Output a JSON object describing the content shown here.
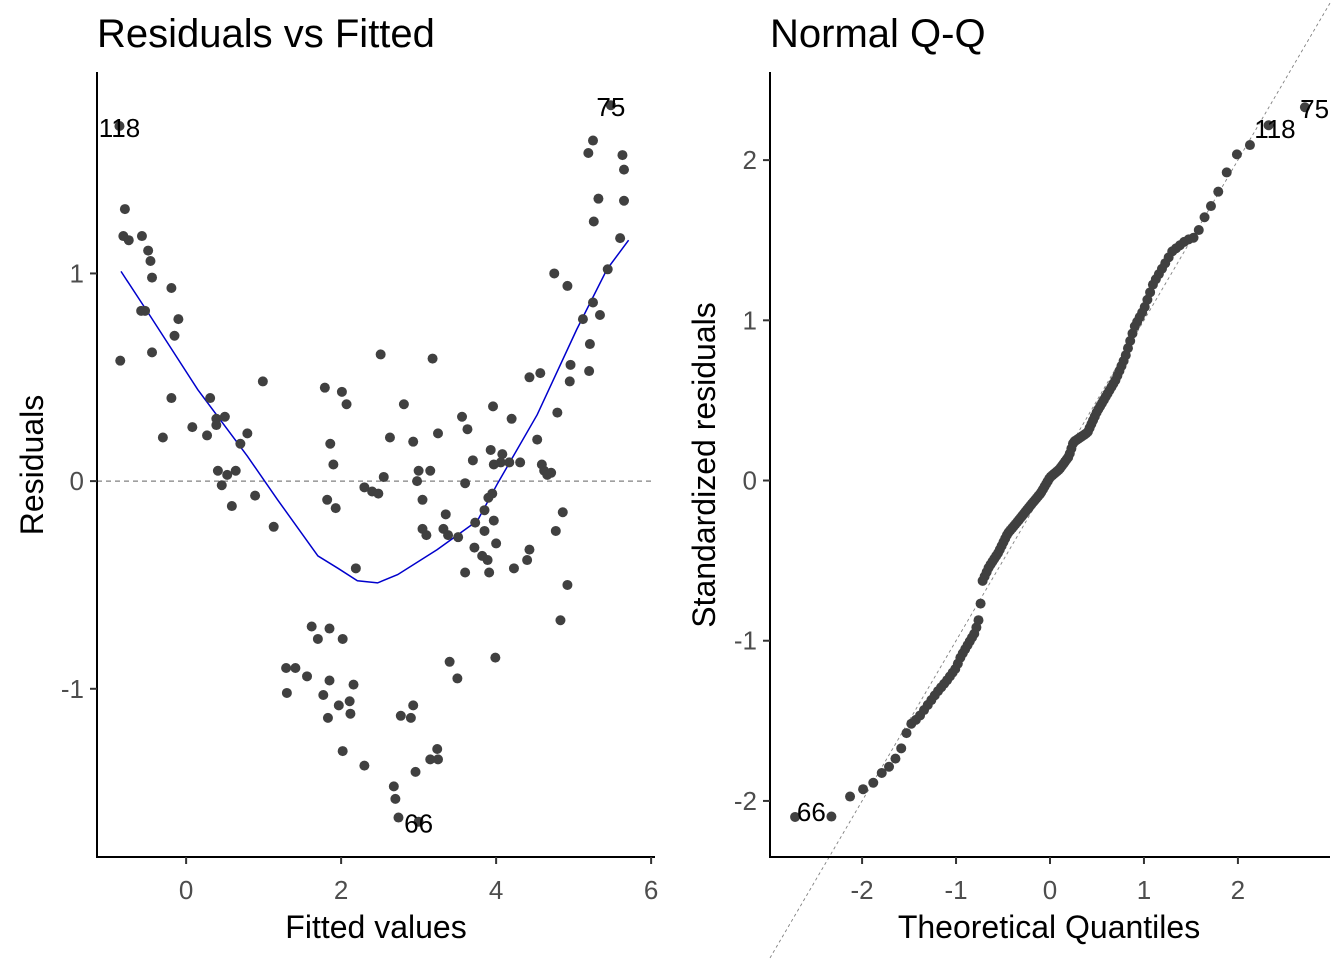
{
  "chart_data": [
    {
      "type": "scatter",
      "title": "Residuals vs Fitted",
      "xlabel": "Fitted values",
      "ylabel": "Residuals",
      "xlim": [
        -1.15,
        6.05
      ],
      "ylim": [
        -1.81,
        1.97
      ],
      "xticks": [
        0,
        2,
        4,
        6
      ],
      "xtick_labels": [
        "0",
        "2",
        "4",
        "6"
      ],
      "yticks": [
        -1,
        0,
        1
      ],
      "ytick_labels": [
        "-1",
        "0",
        "1"
      ],
      "grid": false,
      "hline": 0,
      "point_color": "#404040",
      "smooth_color": "#0000cc",
      "reference_color": "#808080",
      "labeled_points": [
        {
          "label": "118",
          "x": -0.86,
          "y": 1.71
        },
        {
          "label": "75",
          "x": 5.48,
          "y": 1.81
        },
        {
          "label": "66",
          "x": 3.0,
          "y": -1.64
        }
      ],
      "points": [
        [
          -0.86,
          1.71
        ],
        [
          -0.79,
          1.31
        ],
        [
          -0.81,
          1.18
        ],
        [
          -0.74,
          1.16
        ],
        [
          -0.57,
          1.18
        ],
        [
          -0.49,
          1.11
        ],
        [
          -0.46,
          1.06
        ],
        [
          -0.44,
          0.98
        ],
        [
          -0.58,
          0.82
        ],
        [
          -0.53,
          0.82
        ],
        [
          -0.19,
          0.93
        ],
        [
          -0.1,
          0.78
        ],
        [
          -0.15,
          0.7
        ],
        [
          -0.85,
          0.58
        ],
        [
          -0.44,
          0.62
        ],
        [
          -0.19,
          0.4
        ],
        [
          -0.3,
          0.21
        ],
        [
          0.31,
          0.4
        ],
        [
          0.08,
          0.26
        ],
        [
          0.27,
          0.22
        ],
        [
          0.39,
          0.3
        ],
        [
          0.5,
          0.31
        ],
        [
          0.39,
          0.27
        ],
        [
          0.79,
          0.23
        ],
        [
          0.99,
          0.48
        ],
        [
          0.41,
          0.05
        ],
        [
          0.46,
          -0.02
        ],
        [
          0.53,
          0.03
        ],
        [
          0.64,
          0.05
        ],
        [
          0.59,
          -0.12
        ],
        [
          0.89,
          -0.07
        ],
        [
          1.13,
          -0.22
        ],
        [
          1.29,
          -0.9
        ],
        [
          1.3,
          -1.02
        ],
        [
          1.41,
          -0.9
        ],
        [
          1.56,
          -0.94
        ],
        [
          1.62,
          -0.7
        ],
        [
          1.7,
          -0.76
        ],
        [
          1.85,
          -0.71
        ],
        [
          1.85,
          -0.96
        ],
        [
          1.77,
          -1.03
        ],
        [
          1.83,
          -1.14
        ],
        [
          2.02,
          -0.76
        ],
        [
          1.97,
          -1.08
        ],
        [
          2.11,
          -1.06
        ],
        [
          2.16,
          -0.98
        ],
        [
          2.12,
          -1.12
        ],
        [
          2.02,
          -1.3
        ],
        [
          2.3,
          -1.37
        ],
        [
          1.79,
          0.45
        ],
        [
          2.01,
          0.43
        ],
        [
          2.07,
          0.37
        ],
        [
          1.86,
          0.18
        ],
        [
          1.82,
          -0.09
        ],
        [
          1.93,
          -0.13
        ],
        [
          2.19,
          -0.42
        ],
        [
          2.3,
          -0.03
        ],
        [
          2.51,
          0.61
        ],
        [
          2.48,
          -0.06
        ],
        [
          2.55,
          0.02
        ],
        [
          2.81,
          0.37
        ],
        [
          2.63,
          0.21
        ],
        [
          2.93,
          0.19
        ],
        [
          2.98,
          0.0
        ],
        [
          3.05,
          -0.09
        ],
        [
          3.18,
          0.59
        ],
        [
          3.0,
          0.05
        ],
        [
          3.15,
          0.05
        ],
        [
          3.25,
          0.23
        ],
        [
          3.05,
          -0.23
        ],
        [
          2.77,
          -1.13
        ],
        [
          2.9,
          -1.14
        ],
        [
          2.93,
          -1.08
        ],
        [
          2.68,
          -1.47
        ],
        [
          2.7,
          -1.53
        ],
        [
          2.74,
          -1.62
        ],
        [
          3.0,
          -1.64
        ],
        [
          2.96,
          -1.4
        ],
        [
          3.15,
          -1.34
        ],
        [
          3.24,
          -1.29
        ],
        [
          3.25,
          -1.34
        ],
        [
          3.4,
          -0.87
        ],
        [
          3.5,
          -0.95
        ],
        [
          3.35,
          -0.16
        ],
        [
          3.32,
          -0.23
        ],
        [
          3.38,
          -0.26
        ],
        [
          3.56,
          0.31
        ],
        [
          3.63,
          0.25
        ],
        [
          3.6,
          -0.01
        ],
        [
          3.51,
          -0.27
        ],
        [
          3.72,
          -0.32
        ],
        [
          3.73,
          -0.2
        ],
        [
          3.82,
          -0.36
        ],
        [
          3.85,
          -0.14
        ],
        [
          3.9,
          -0.08
        ],
        [
          3.91,
          -0.44
        ],
        [
          3.96,
          0.36
        ],
        [
          3.93,
          0.15
        ],
        [
          3.97,
          0.08
        ],
        [
          3.95,
          -0.06
        ],
        [
          3.97,
          -0.19
        ],
        [
          4.06,
          0.09
        ],
        [
          4.08,
          0.13
        ],
        [
          4.17,
          0.09
        ],
        [
          4.23,
          -0.42
        ],
        [
          3.85,
          -0.24
        ],
        [
          3.99,
          -0.85
        ],
        [
          3.89,
          -0.38
        ],
        [
          4.31,
          0.09
        ],
        [
          4.43,
          0.5
        ],
        [
          4.57,
          0.52
        ],
        [
          4.43,
          -0.33
        ],
        [
          4.53,
          0.2
        ],
        [
          4.59,
          0.08
        ],
        [
          4.62,
          0.05
        ],
        [
          4.66,
          0.03
        ],
        [
          4.71,
          0.04
        ],
        [
          4.79,
          0.33
        ],
        [
          4.86,
          -0.15
        ],
        [
          4.77,
          -0.24
        ],
        [
          4.92,
          -0.5
        ],
        [
          4.83,
          -0.67
        ],
        [
          4.95,
          0.48
        ],
        [
          4.96,
          0.56
        ],
        [
          4.75,
          1.0
        ],
        [
          4.92,
          0.94
        ],
        [
          5.12,
          0.78
        ],
        [
          5.21,
          0.66
        ],
        [
          5.34,
          0.8
        ],
        [
          5.25,
          0.86
        ],
        [
          5.2,
          0.53
        ],
        [
          5.26,
          1.25
        ],
        [
          5.32,
          1.36
        ],
        [
          5.44,
          1.02
        ],
        [
          5.6,
          1.17
        ],
        [
          5.19,
          1.58
        ],
        [
          5.25,
          1.64
        ],
        [
          5.63,
          1.57
        ],
        [
          5.65,
          1.5
        ],
        [
          5.65,
          1.35
        ],
        [
          5.48,
          1.81
        ],
        [
          3.6,
          -0.44
        ],
        [
          4.4,
          -0.38
        ],
        [
          4.0,
          -0.3
        ],
        [
          3.1,
          -0.26
        ],
        [
          2.4,
          -0.05
        ],
        [
          1.9,
          0.08
        ],
        [
          3.7,
          0.1
        ],
        [
          4.2,
          0.3
        ],
        [
          0.7,
          0.18
        ]
      ],
      "smooth_line": [
        [
          -0.84,
          1.01
        ],
        [
          -0.49,
          0.81
        ],
        [
          0.15,
          0.44
        ],
        [
          0.79,
          0.12
        ],
        [
          1.18,
          -0.09
        ],
        [
          1.7,
          -0.36
        ],
        [
          1.96,
          -0.42
        ],
        [
          2.21,
          -0.48
        ],
        [
          2.47,
          -0.49
        ],
        [
          2.73,
          -0.45
        ],
        [
          3.24,
          -0.33
        ],
        [
          3.76,
          -0.19
        ],
        [
          4.02,
          -0.01
        ],
        [
          4.53,
          0.32
        ],
        [
          5.04,
          0.73
        ],
        [
          5.43,
          1.02
        ],
        [
          5.71,
          1.16
        ]
      ]
    },
    {
      "type": "scatter",
      "title": "Normal Q-Q",
      "xlabel": "Theoretical Quantiles",
      "ylabel": "Standardized residuals",
      "xlim": [
        -2.98,
        2.98
      ],
      "ylim": [
        -2.35,
        2.55
      ],
      "xticks": [
        -2,
        -1,
        0,
        1,
        2
      ],
      "xtick_labels": [
        "-2",
        "-1",
        "0",
        "1",
        "2"
      ],
      "yticks": [
        -2,
        -1,
        0,
        1,
        2
      ],
      "ytick_labels": [
        "-2",
        "-1",
        "0",
        "1",
        "2"
      ],
      "grid": false,
      "reference_line": {
        "slope": 1,
        "intercept": 0
      },
      "point_color": "#404040",
      "reference_color": "#808080",
      "n_points": 150,
      "labeled_points": [
        {
          "label": "66",
          "x": -2.71,
          "y": -2.07
        },
        {
          "label": "118",
          "x": 2.33,
          "y": 2.22
        },
        {
          "label": "75",
          "x": 2.71,
          "y": 2.33
        }
      ],
      "sample_quantiles_anchor": [
        [
          -2.71,
          -2.1
        ],
        [
          -2.33,
          -2.1
        ],
        [
          -2.15,
          -1.98
        ],
        [
          -2.0,
          -1.93
        ],
        [
          -1.9,
          -1.9
        ],
        [
          -1.8,
          -1.83
        ],
        [
          -1.7,
          -1.78
        ],
        [
          -1.6,
          -1.7
        ],
        [
          -1.5,
          -1.53
        ],
        [
          -1.4,
          -1.48
        ],
        [
          -1.3,
          -1.4
        ],
        [
          -1.2,
          -1.32
        ],
        [
          -1.1,
          -1.25
        ],
        [
          -1.0,
          -1.17
        ],
        [
          -0.95,
          -1.1
        ],
        [
          -0.8,
          -0.95
        ],
        [
          -0.75,
          -0.85
        ],
        [
          -0.72,
          -0.63
        ],
        [
          -0.65,
          -0.54
        ],
        [
          -0.55,
          -0.45
        ],
        [
          -0.45,
          -0.33
        ],
        [
          -0.35,
          -0.26
        ],
        [
          -0.2,
          -0.15
        ],
        [
          -0.1,
          -0.08
        ],
        [
          0.0,
          0.02
        ],
        [
          0.1,
          0.07
        ],
        [
          0.2,
          0.15
        ],
        [
          0.25,
          0.24
        ],
        [
          0.4,
          0.3
        ],
        [
          0.5,
          0.43
        ],
        [
          0.6,
          0.53
        ],
        [
          0.7,
          0.63
        ],
        [
          0.8,
          0.77
        ],
        [
          0.9,
          0.96
        ],
        [
          1.0,
          1.07
        ],
        [
          1.1,
          1.23
        ],
        [
          1.2,
          1.33
        ],
        [
          1.3,
          1.43
        ],
        [
          1.45,
          1.5
        ],
        [
          1.55,
          1.52
        ],
        [
          1.65,
          1.65
        ],
        [
          1.75,
          1.75
        ],
        [
          1.85,
          1.88
        ],
        [
          1.95,
          2.02
        ],
        [
          2.1,
          2.08
        ],
        [
          2.2,
          2.13
        ],
        [
          2.33,
          2.22
        ],
        [
          2.71,
          2.33
        ]
      ]
    }
  ]
}
